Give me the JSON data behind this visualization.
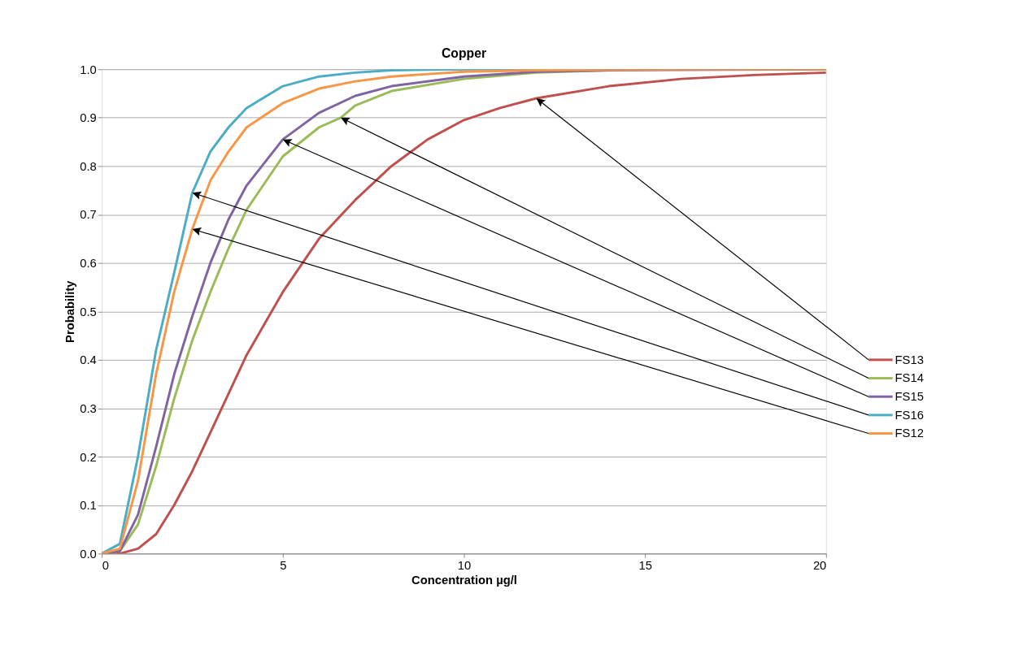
{
  "chart_data": {
    "type": "line",
    "title": "Copper",
    "xlabel": "Concentration µg/l",
    "ylabel": "Probability",
    "xlim": [
      0,
      20
    ],
    "xticks": [
      0,
      5,
      10,
      15,
      20
    ],
    "ylim": [
      0,
      1
    ],
    "yticks": [
      {
        "value": 0,
        "label": "0.0"
      },
      {
        "value": 0.1,
        "label": "0.1"
      },
      {
        "value": 0.2,
        "label": "0.2"
      },
      {
        "value": 0.3,
        "label": "0.3"
      },
      {
        "value": 0.4,
        "label": "0.4"
      },
      {
        "value": 0.5,
        "label": "0.5"
      },
      {
        "value": 0.6,
        "label": "0.6"
      },
      {
        "value": 0.7,
        "label": "0.7"
      },
      {
        "value": 0.8,
        "label": "0.8"
      },
      {
        "value": 0.9,
        "label": "0.9"
      },
      {
        "value": 1,
        "label": "1.0"
      }
    ],
    "grid": "y",
    "legend": "right",
    "marker": "none",
    "line_style": "solid",
    "series": [
      {
        "name": "FS13",
        "color": "#c0504d",
        "x": [
          0,
          0.5,
          1,
          1.5,
          2,
          2.5,
          3,
          3.5,
          4,
          5,
          6,
          7,
          8,
          9,
          10,
          11,
          12,
          14,
          16,
          18,
          20
        ],
        "values": [
          0,
          0,
          0.01,
          0.04,
          0.1,
          0.17,
          0.25,
          0.33,
          0.41,
          0.54,
          0.65,
          0.73,
          0.8,
          0.855,
          0.895,
          0.92,
          0.94,
          0.965,
          0.98,
          0.988,
          0.993
        ]
      },
      {
        "name": "FS14",
        "color": "#9bbb59",
        "x": [
          0,
          0.5,
          1,
          1.5,
          2,
          2.5,
          3,
          3.5,
          4,
          5,
          6,
          6.6,
          7,
          8,
          10,
          12,
          14,
          16,
          20
        ],
        "values": [
          0,
          0.005,
          0.06,
          0.18,
          0.32,
          0.44,
          0.54,
          0.63,
          0.71,
          0.82,
          0.88,
          0.9,
          0.925,
          0.955,
          0.98,
          0.993,
          0.998,
          1,
          1
        ]
      },
      {
        "name": "FS15",
        "color": "#8064a2",
        "x": [
          0,
          0.5,
          1,
          1.5,
          2,
          2.5,
          3,
          3.5,
          4,
          5,
          6,
          7,
          8,
          10,
          12,
          14,
          20
        ],
        "values": [
          0,
          0.005,
          0.08,
          0.22,
          0.37,
          0.49,
          0.6,
          0.69,
          0.76,
          0.855,
          0.91,
          0.945,
          0.965,
          0.985,
          0.995,
          0.998,
          1
        ]
      },
      {
        "name": "FS16",
        "color": "#4bacc6",
        "x": [
          0,
          0.5,
          1,
          1.5,
          2,
          2.5,
          3,
          3.5,
          4,
          5,
          6,
          7,
          8,
          10,
          12
        ],
        "values": [
          0,
          0.02,
          0.2,
          0.42,
          0.58,
          0.745,
          0.83,
          0.88,
          0.92,
          0.965,
          0.985,
          0.993,
          0.998,
          1,
          1
        ]
      },
      {
        "name": "FS12",
        "color": "#f79646",
        "x": [
          0,
          0.5,
          1,
          1.5,
          2,
          2.5,
          3,
          3.5,
          4,
          5,
          6,
          7,
          8,
          10,
          12,
          16,
          20
        ],
        "values": [
          0,
          0.01,
          0.15,
          0.37,
          0.54,
          0.67,
          0.77,
          0.83,
          0.88,
          0.93,
          0.96,
          0.975,
          0.985,
          0.995,
          0.998,
          1,
          1
        ]
      }
    ]
  }
}
